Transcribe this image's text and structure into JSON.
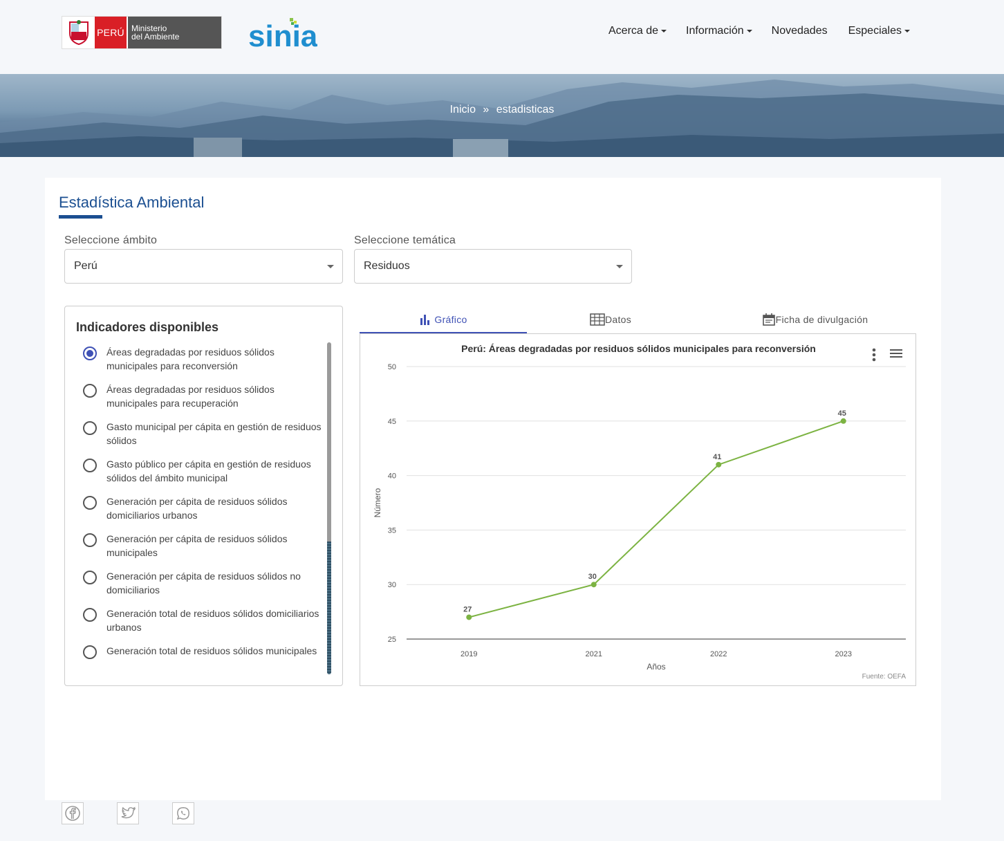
{
  "header": {
    "logo": {
      "country": "PERÚ",
      "ministry_line1": "Ministerio",
      "ministry_line2": "del Ambiente",
      "brand": "sinia"
    },
    "nav": [
      {
        "label": "Acerca de",
        "dropdown": true
      },
      {
        "label": "Información",
        "dropdown": true
      },
      {
        "label": "Novedades",
        "dropdown": false
      },
      {
        "label": "Especiales",
        "dropdown": true
      }
    ]
  },
  "breadcrumb": {
    "home": "Inicio",
    "separator": "»",
    "current": "estadisticas"
  },
  "main": {
    "title": "Estadística Ambiental",
    "filters": {
      "ambito": {
        "label": "Seleccione ámbito",
        "value": "Perú"
      },
      "tematica": {
        "label": "Seleccione temática",
        "value": "Residuos"
      }
    },
    "indicators": {
      "title": "Indicadores disponibles",
      "items": [
        {
          "label": "Áreas degradadas por residuos sólidos municipales para reconversión",
          "checked": true
        },
        {
          "label": "Áreas degradadas por residuos sólidos municipales para recuperación",
          "checked": false
        },
        {
          "label": "Gasto municipal per cápita en gestión de residuos sólidos",
          "checked": false
        },
        {
          "label": "Gasto público per cápita en gestión de residuos sólidos del ámbito municipal",
          "checked": false
        },
        {
          "label": "Generación per cápita de residuos sólidos domiciliarios urbanos",
          "checked": false
        },
        {
          "label": "Generación per cápita de residuos sólidos municipales",
          "checked": false
        },
        {
          "label": "Generación per cápita de residuos sólidos no domiciliarios",
          "checked": false
        },
        {
          "label": "Generación total de residuos sólidos domiciliarios urbanos",
          "checked": false
        },
        {
          "label": "Generación total de residuos sólidos municipales",
          "checked": false
        }
      ]
    },
    "tabs": [
      {
        "label": "Gráfico",
        "icon": "bar-chart-icon",
        "active": true
      },
      {
        "label": "Datos",
        "icon": "table-icon",
        "active": false
      },
      {
        "label": "Ficha de divulgación",
        "icon": "calendar-icon",
        "active": false
      }
    ],
    "source": "Fuente: OEFA"
  },
  "chart_data": {
    "type": "line",
    "title": "Perú: Áreas degradadas por residuos sólidos municipales para reconversión",
    "xlabel": "Años",
    "ylabel": "Número",
    "categories": [
      "2019",
      "2021",
      "2022",
      "2023"
    ],
    "values": [
      27,
      30,
      41,
      45
    ],
    "ylim": [
      25,
      50
    ],
    "yticks": [
      25,
      30,
      35,
      40,
      45,
      50
    ],
    "grid": true,
    "color": "#7cb342"
  },
  "share": [
    {
      "icon": "facebook-icon"
    },
    {
      "icon": "twitter-icon"
    },
    {
      "icon": "whatsapp-icon"
    }
  ],
  "colors": {
    "primary": "#1b4f91",
    "accent": "#3f51b5",
    "line": "#7cb342"
  }
}
